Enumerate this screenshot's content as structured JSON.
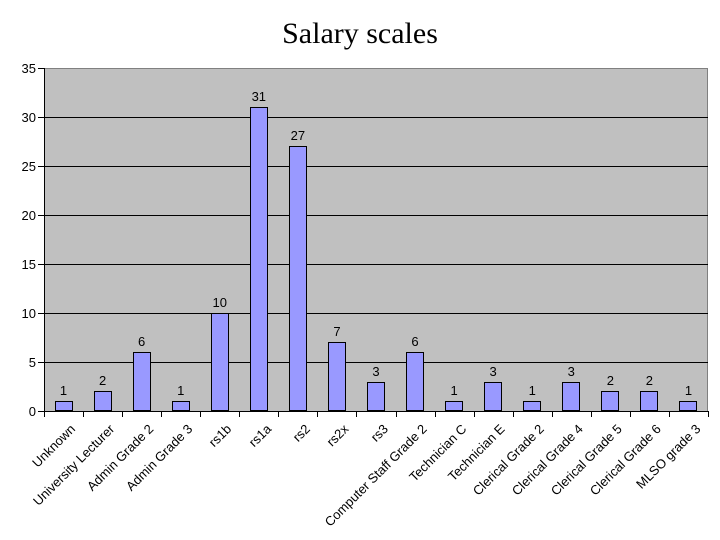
{
  "title": "Salary scales",
  "chart_data": {
    "type": "bar",
    "title": "Salary scales",
    "categories": [
      "Unknown",
      "University Lecturer",
      "Admin Grade 2",
      "Admin Grade 3",
      "rs1b",
      "rs1a",
      "rs2",
      "rs2x",
      "rs3",
      "Computer Staff Grade 2",
      "Technician C",
      "Technician E",
      "Clerical Grade 2",
      "Clerical Grade 4",
      "Clerical Grade 5",
      "Clerical Grade 6",
      "MLSO grade 3"
    ],
    "values": [
      1,
      2,
      6,
      1,
      10,
      31,
      27,
      7,
      3,
      6,
      1,
      3,
      1,
      3,
      2,
      2,
      1
    ],
    "data_labels": [
      1,
      2,
      6,
      1,
      10,
      31,
      27,
      7,
      3,
      6,
      1,
      3,
      1,
      3,
      2,
      2,
      1
    ],
    "xlabel": "",
    "ylabel": "",
    "ylim": [
      0,
      35
    ],
    "yticks": [
      0,
      5,
      10,
      15,
      20,
      25,
      30,
      35
    ],
    "grid": "horizontal major gridlines on",
    "legend": "none",
    "colors": {
      "bar_fill": "#9999ff",
      "bar_border": "#000000",
      "plot_background": "#c0c0c0",
      "gridline": "#000000",
      "plot_border": "#808080",
      "page_background": "#ffffff",
      "text": "#000000"
    }
  }
}
